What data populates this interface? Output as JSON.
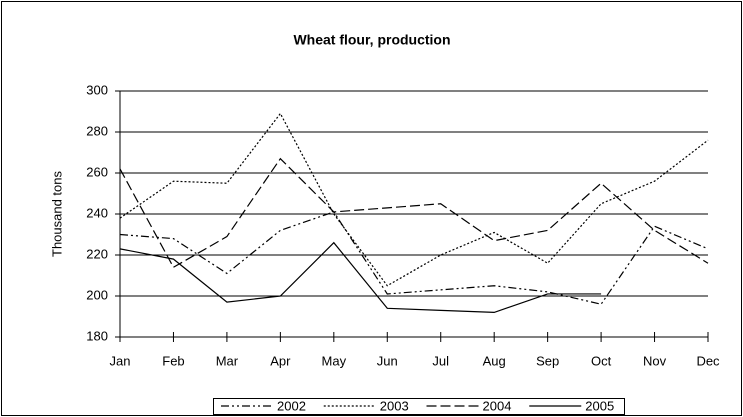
{
  "chart_data": {
    "type": "line",
    "title": "Wheat flour, production",
    "y_label": "Thousand tons",
    "categories": [
      "Jan",
      "Feb",
      "Mar",
      "Apr",
      "May",
      "Jun",
      "Jul",
      "Aug",
      "Sep",
      "Oct",
      "Nov",
      "Dec"
    ],
    "series": [
      {
        "name": "2002",
        "color": "#000000",
        "style": "dash-dot",
        "values": [
          230,
          228,
          211,
          232,
          241,
          201,
          203,
          205,
          202,
          196,
          234,
          223
        ]
      },
      {
        "name": "2003",
        "color": "#000000",
        "style": "dotted",
        "values": [
          238,
          256,
          255,
          289,
          240,
          205,
          220,
          231,
          216,
          245,
          256,
          276
        ]
      },
      {
        "name": "2004",
        "color": "#000000",
        "style": "dashed",
        "values": [
          262,
          214,
          229,
          267,
          241,
          243,
          245,
          227,
          232,
          255,
          232,
          216
        ]
      },
      {
        "name": "2005",
        "color": "#000000",
        "style": "solid",
        "values": [
          223,
          218,
          197,
          200,
          226,
          194,
          193,
          192,
          201,
          201,
          null,
          null
        ]
      }
    ],
    "ylim": [
      180,
      300
    ],
    "yticks": [
      180,
      200,
      220,
      240,
      260,
      280,
      300
    ],
    "grid": true,
    "legend": "bottom"
  }
}
